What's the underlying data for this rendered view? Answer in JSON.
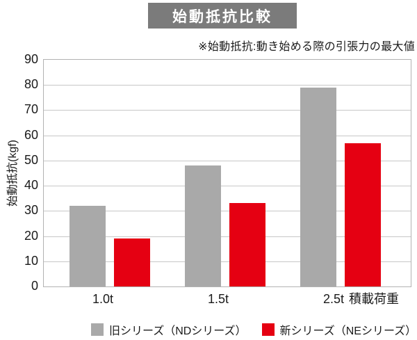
{
  "chart_data": {
    "type": "bar",
    "title": "始動抵抗比較",
    "note": "※始動抵抗:動き始める際の引張力の最大値",
    "categories": [
      "1.0t",
      "1.5t",
      "2.5t"
    ],
    "series": [
      {
        "name": "旧シリーズ（NDシリーズ）",
        "color": "#a9a9a9",
        "values": [
          32,
          48,
          79
        ]
      },
      {
        "name": "新シリーズ（NEシリーズ）",
        "color": "#e50012",
        "values": [
          19,
          33,
          57
        ]
      }
    ],
    "xlabel": "積載荷重",
    "ylabel": "始動抵抗(kgf)",
    "ylim": [
      0,
      90
    ],
    "ytick_step": 10,
    "grid": true,
    "legend_position": "bottom"
  },
  "colors": {
    "background": "#ffffff",
    "title_box_bg": "#7b7b7b",
    "title_text": "#ffffff",
    "grid_line": "#c7c7c7",
    "plot_border": "#b2b2b2",
    "text": "#1a1a1a"
  }
}
